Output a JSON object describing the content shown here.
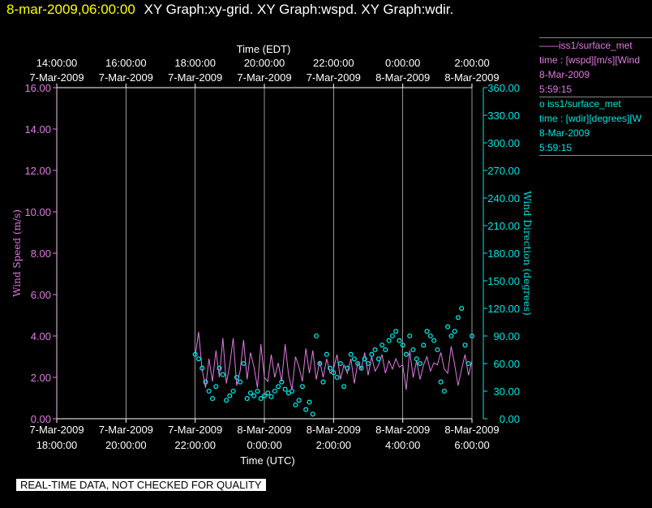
{
  "header": {
    "timestamp": "8-mar-2009,06:00:00",
    "graphs": "XY Graph:xy-grid.  XY Graph:wspd.  XY Graph:wdir."
  },
  "legend": {
    "wspd": {
      "name": "——iss1/surface_met",
      "field": "time : [wspd][m/s][Wind",
      "date": "8-Mar-2009",
      "time": "5:59:15"
    },
    "wdir": {
      "name": "o  iss1/surface_met",
      "field": "time : [wdir][degrees][W",
      "date": "8-Mar-2009",
      "time": "5:59:15"
    }
  },
  "footer": {
    "quality_note": "REAL-TIME DATA, NOT CHECKED FOR QUALITY"
  },
  "colors": {
    "wspd": "#e27ae2",
    "wdir": "#00e5e5",
    "grid": "#ffffff",
    "background": "#000000"
  },
  "chart_data": {
    "type": "line",
    "top_axis": {
      "label": "Time (EDT)",
      "ticks": [
        [
          "14:00:00",
          "7-Mar-2009"
        ],
        [
          "16:00:00",
          "7-Mar-2009"
        ],
        [
          "18:00:00",
          "7-Mar-2009"
        ],
        [
          "20:00:00",
          "7-Mar-2009"
        ],
        [
          "22:00:00",
          "7-Mar-2009"
        ],
        [
          "0:00:00",
          "8-Mar-2009"
        ],
        [
          "2:00:00",
          "8-Mar-2009"
        ]
      ]
    },
    "x_axis": {
      "label": "Time (UTC)",
      "range_hours": [
        18,
        30
      ],
      "tick_hours": [
        18,
        20,
        22,
        24,
        26,
        28,
        30
      ],
      "ticks": [
        [
          "7-Mar-2009",
          "18:00:00"
        ],
        [
          "7-Mar-2009",
          "20:00:00"
        ],
        [
          "7-Mar-2009",
          "22:00:00"
        ],
        [
          "8-Mar-2009",
          "0:00:00"
        ],
        [
          "8-Mar-2009",
          "2:00:00"
        ],
        [
          "8-Mar-2009",
          "4:00:00"
        ],
        [
          "8-Mar-2009",
          "6:00:00"
        ]
      ]
    },
    "y_left": {
      "label": "Wind Speed (m/s)",
      "range": [
        0,
        16
      ],
      "ticks": [
        "0.00",
        "2.00",
        "4.00",
        "6.00",
        "8.00",
        "10.00",
        "12.00",
        "14.00",
        "16.00"
      ]
    },
    "y_right": {
      "label": "Wind Direction (degrees)",
      "range": [
        0,
        360
      ],
      "ticks": [
        "0.00",
        "30.00",
        "60.00",
        "90.00",
        "120.00",
        "150.00",
        "180.00",
        "210.00",
        "240.00",
        "270.00",
        "300.00",
        "330.00",
        "360.00"
      ]
    },
    "series": [
      {
        "name": "iss1/surface_met wspd",
        "style": "line",
        "x_hours": [
          22.0,
          22.1,
          22.2,
          22.3,
          22.4,
          22.5,
          22.6,
          22.7,
          22.8,
          22.9,
          23.0,
          23.1,
          23.2,
          23.3,
          23.4,
          23.5,
          23.6,
          23.7,
          23.8,
          23.9,
          24.0,
          24.1,
          24.2,
          24.3,
          24.4,
          24.5,
          24.6,
          24.7,
          24.8,
          24.9,
          25.0,
          25.1,
          25.2,
          25.3,
          25.4,
          25.5,
          25.6,
          25.7,
          25.8,
          25.9,
          26.0,
          26.1,
          26.2,
          26.3,
          26.4,
          26.5,
          26.6,
          26.7,
          26.8,
          26.9,
          27.0,
          27.1,
          27.2,
          27.3,
          27.4,
          27.5,
          27.6,
          27.7,
          27.8,
          27.9,
          28.0,
          28.1,
          28.2,
          28.3,
          28.4,
          28.5,
          28.6,
          28.7,
          28.8,
          28.9,
          29.0,
          29.1,
          29.2,
          29.3,
          29.4,
          29.5,
          29.6,
          29.7,
          29.8,
          29.9,
          30.0
        ],
        "values": [
          3.0,
          4.2,
          2.4,
          1.5,
          2.9,
          1.8,
          3.3,
          2.0,
          3.9,
          1.7,
          2.6,
          3.9,
          1.6,
          2.3,
          3.8,
          1.9,
          3.2,
          2.5,
          1.5,
          3.6,
          2.0,
          1.8,
          3.1,
          2.0,
          2.7,
          1.8,
          3.6,
          2.1,
          1.4,
          3.0,
          2.5,
          1.8,
          3.4,
          2.2,
          3.3,
          1.9,
          2.8,
          2.0,
          2.9,
          2.2,
          2.4,
          3.1,
          1.9,
          2.6,
          2.2,
          2.9,
          1.7,
          2.7,
          2.4,
          3.2,
          2.1,
          3.0,
          2.3,
          2.6,
          3.1,
          2.2,
          2.8,
          2.4,
          2.9,
          2.5,
          2.6,
          1.4,
          3.3,
          2.0,
          2.8,
          1.9,
          2.6,
          3.0,
          2.3,
          2.7,
          2.6,
          3.2,
          2.4,
          2.2,
          3.5,
          2.6,
          1.6,
          2.4,
          3.1,
          2.1,
          2.8
        ]
      },
      {
        "name": "iss1/surface_met wdir",
        "style": "points",
        "x_hours": [
          22.0,
          22.1,
          22.2,
          22.3,
          22.4,
          22.5,
          22.6,
          22.7,
          22.8,
          22.9,
          23.0,
          23.1,
          23.2,
          23.3,
          23.4,
          23.5,
          23.6,
          23.7,
          23.8,
          23.9,
          24.0,
          24.1,
          24.2,
          24.3,
          24.4,
          24.5,
          24.6,
          24.7,
          24.8,
          24.9,
          25.0,
          25.1,
          25.2,
          25.3,
          25.4,
          25.5,
          25.6,
          25.7,
          25.8,
          25.9,
          26.0,
          26.1,
          26.2,
          26.3,
          26.4,
          26.5,
          26.6,
          26.7,
          26.8,
          26.9,
          27.0,
          27.1,
          27.2,
          27.3,
          27.4,
          27.5,
          27.6,
          27.7,
          27.8,
          27.9,
          28.0,
          28.1,
          28.2,
          28.3,
          28.4,
          28.5,
          28.6,
          28.7,
          28.8,
          28.9,
          29.0,
          29.1,
          29.2,
          29.3,
          29.4,
          29.5,
          29.6,
          29.7,
          29.8,
          29.9,
          30.0
        ],
        "values": [
          70,
          65,
          55,
          40,
          30,
          22,
          35,
          55,
          48,
          20,
          25,
          30,
          45,
          40,
          60,
          22,
          28,
          25,
          30,
          22,
          25,
          28,
          24,
          30,
          35,
          40,
          32,
          28,
          30,
          15,
          20,
          35,
          10,
          18,
          5,
          90,
          60,
          40,
          70,
          55,
          50,
          45,
          60,
          35,
          55,
          70,
          65,
          60,
          55,
          65,
          60,
          70,
          75,
          65,
          80,
          75,
          85,
          90,
          95,
          85,
          80,
          70,
          90,
          75,
          65,
          60,
          80,
          95,
          90,
          85,
          75,
          40,
          30,
          100,
          90,
          95,
          110,
          120,
          80,
          60,
          90
        ]
      }
    ]
  }
}
